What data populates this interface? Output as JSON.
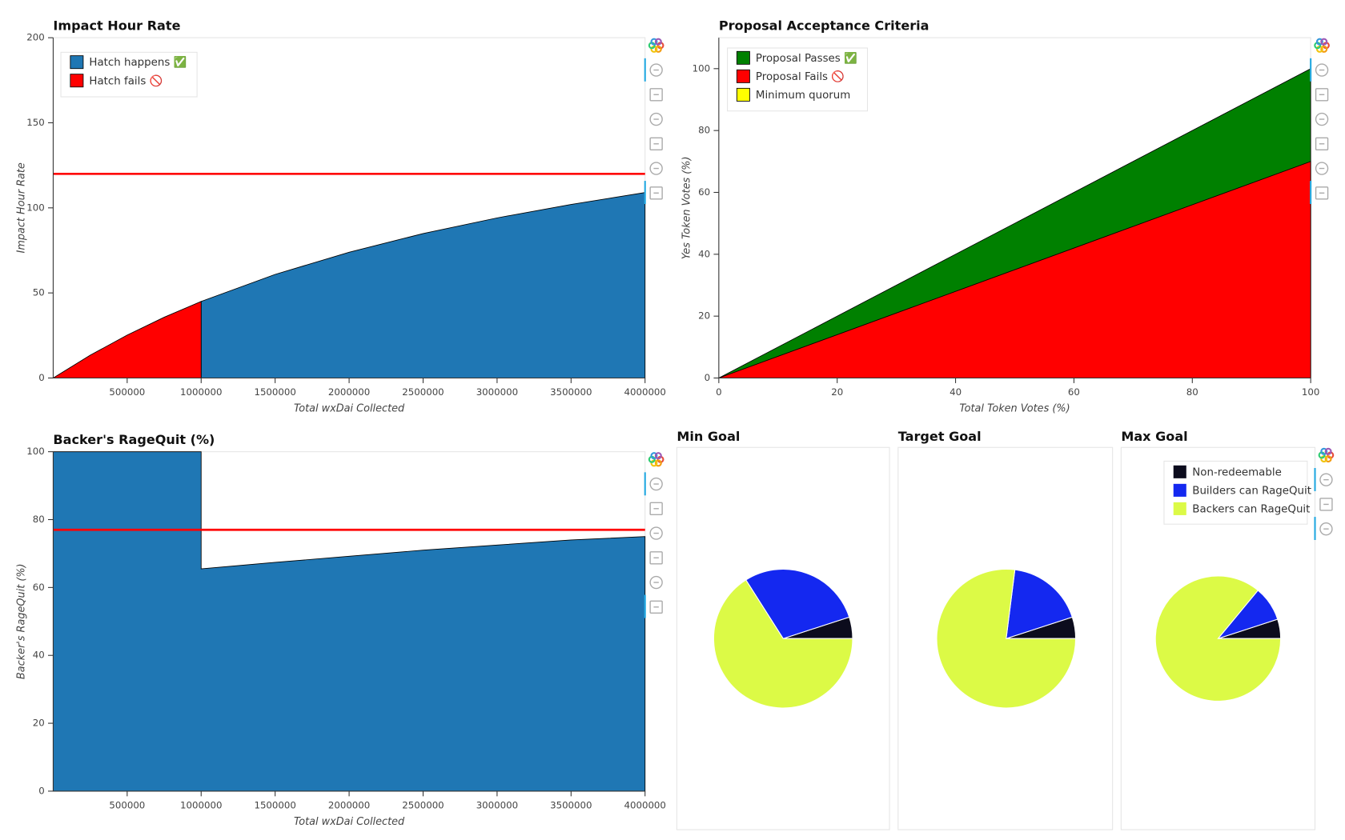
{
  "chart_data": [
    {
      "type": "area",
      "title": "Impact Hour Rate",
      "xlabel": "Total wxDai Collected",
      "ylabel": "Impact Hour Rate",
      "xlim": [
        0,
        4000000
      ],
      "ylim": [
        0,
        200
      ],
      "xticks": [
        500000,
        1000000,
        1500000,
        2000000,
        2500000,
        3000000,
        3500000,
        4000000
      ],
      "yticks": [
        0,
        50,
        100,
        150,
        200
      ],
      "grid": false,
      "legend": "top_left",
      "threshold": 120,
      "threshold_color": "#ff0000",
      "series": [
        {
          "name": "Hatch happens ✅",
          "color": "#1f77b4",
          "x": [
            1000000,
            1500000,
            2000000,
            2500000,
            3000000,
            3500000,
            4000000
          ],
          "values": [
            45,
            60.9,
            73.9,
            84.9,
            94.1,
            102,
            109
          ]
        },
        {
          "name": "Hatch fails 🚫",
          "color": "#ff0000",
          "x": [
            0,
            250000,
            500000,
            750000,
            1000000
          ],
          "values": [
            0,
            13.4,
            25.2,
            35.7,
            45
          ]
        }
      ]
    },
    {
      "type": "area",
      "title": "Proposal Acceptance Criteria",
      "xlabel": "Total Token Votes (%)",
      "ylabel": "Yes Token Votes (%)",
      "xlim": [
        0,
        100
      ],
      "ylim": [
        0,
        110
      ],
      "xticks": [
        0,
        20,
        40,
        60,
        80,
        100
      ],
      "yticks": [
        0,
        20,
        40,
        60,
        80,
        100
      ],
      "grid": false,
      "legend": "top_left",
      "series": [
        {
          "name": "Proposal Passes ✅",
          "color": "#008000",
          "x": [
            0,
            100
          ],
          "values": [
            0,
            100
          ]
        },
        {
          "name": "Proposal Fails 🚫",
          "color": "#ff0000",
          "x": [
            0,
            100
          ],
          "values": [
            0,
            70
          ]
        },
        {
          "name": "Minimum quorum",
          "color": "#ffff00"
        }
      ]
    },
    {
      "type": "area",
      "title": "Backer's RageQuit (%)",
      "xlabel": "Total wxDai Collected",
      "ylabel": "Backer's RageQuit (%)",
      "xlim": [
        0,
        4000000
      ],
      "ylim": [
        0,
        100
      ],
      "xticks": [
        500000,
        1000000,
        1500000,
        2000000,
        2500000,
        3000000,
        3500000,
        4000000
      ],
      "yticks": [
        0,
        20,
        40,
        60,
        80,
        100
      ],
      "grid": false,
      "threshold": 77,
      "threshold_color": "#ff0000",
      "series": [
        {
          "color": "#1f77b4",
          "x": [
            0,
            1000000,
            1000000,
            1500000,
            2000000,
            2500000,
            3000000,
            3500000,
            4000000
          ],
          "values": [
            100,
            100,
            65.5,
            67.4,
            69.2,
            71,
            72.5,
            74,
            75
          ]
        }
      ]
    },
    {
      "type": "pie",
      "title": "Min Goal",
      "values": [
        5,
        29,
        66
      ],
      "colors": [
        "#0c0c1d",
        "#1428f0",
        "#dcfa46"
      ]
    },
    {
      "type": "pie",
      "title": "Target Goal",
      "values": [
        5,
        18,
        77
      ],
      "colors": [
        "#0c0c1d",
        "#1428f0",
        "#dcfa46"
      ]
    },
    {
      "type": "pie",
      "title": "Max Goal",
      "categories": [
        "Non-redeemable",
        "Builders can RageQuit",
        "Backers can RageQuit"
      ],
      "values": [
        5,
        9,
        86
      ],
      "colors": [
        "#0c0c1d",
        "#1428f0",
        "#dcfa46"
      ],
      "legend": "top_right"
    }
  ]
}
